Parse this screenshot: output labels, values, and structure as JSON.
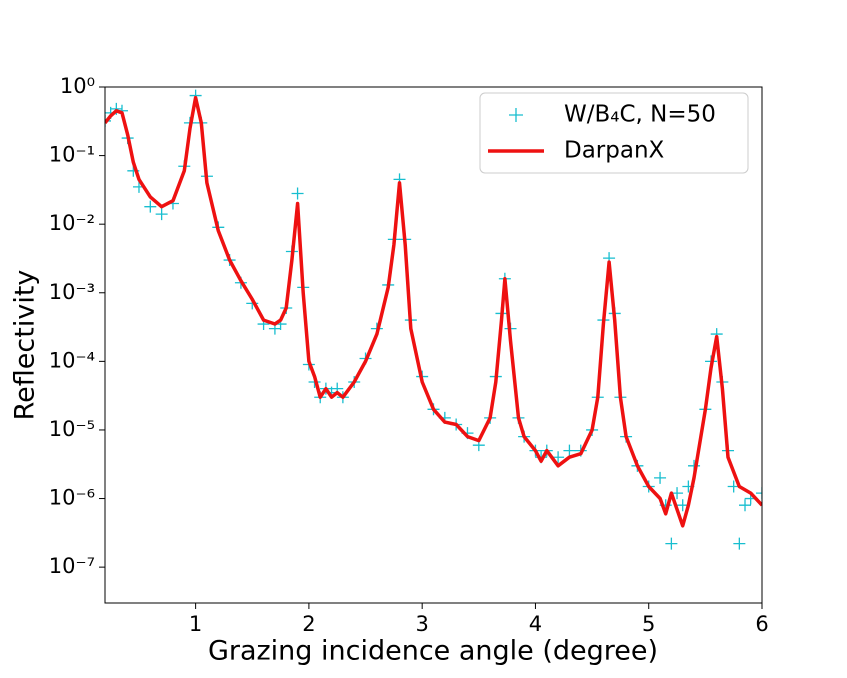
{
  "chart_data": {
    "type": "line",
    "xlabel": "Grazing incidence angle (degree)",
    "ylabel": "Reflectivity",
    "ylog": true,
    "xlim": [
      0.2,
      6
    ],
    "ylim": [
      3e-08,
      1
    ],
    "xticks": [
      1,
      2,
      3,
      4,
      5,
      6
    ],
    "yticks": [
      {
        "value": 1,
        "label": "10⁰"
      },
      {
        "value": 0.1,
        "label": "10⁻¹"
      },
      {
        "value": 0.01,
        "label": "10⁻²"
      },
      {
        "value": 0.001,
        "label": "10⁻³"
      },
      {
        "value": 0.0001,
        "label": "10⁻⁴"
      },
      {
        "value": 1e-05,
        "label": "10⁻⁵"
      },
      {
        "value": 1e-06,
        "label": "10⁻⁶"
      },
      {
        "value": 1e-07,
        "label": "10⁻⁷"
      }
    ],
    "legend": "upper right",
    "series": [
      {
        "name": "W/B₄C, N=50",
        "color": "#17becf",
        "style": "scatter",
        "x": [
          0.2,
          0.25,
          0.3,
          0.35,
          0.4,
          0.45,
          0.5,
          0.6,
          0.7,
          0.8,
          0.9,
          0.95,
          1.0,
          1.05,
          1.1,
          1.2,
          1.3,
          1.4,
          1.5,
          1.6,
          1.7,
          1.75,
          1.8,
          1.85,
          1.9,
          1.95,
          2.0,
          2.05,
          2.1,
          2.15,
          2.2,
          2.25,
          2.3,
          2.4,
          2.5,
          2.6,
          2.7,
          2.75,
          2.8,
          2.85,
          2.9,
          3.0,
          3.1,
          3.2,
          3.3,
          3.4,
          3.5,
          3.6,
          3.65,
          3.7,
          3.73,
          3.78,
          3.85,
          3.9,
          4.0,
          4.05,
          4.1,
          4.2,
          4.3,
          4.4,
          4.5,
          4.55,
          4.6,
          4.65,
          4.7,
          4.75,
          4.8,
          4.9,
          5.0,
          5.1,
          5.15,
          5.2,
          5.25,
          5.3,
          5.35,
          5.4,
          5.5,
          5.55,
          5.6,
          5.65,
          5.7,
          5.75,
          5.8,
          5.85,
          5.9,
          6.0
        ],
        "values": [
          0.32,
          0.42,
          0.48,
          0.45,
          0.18,
          0.06,
          0.035,
          0.018,
          0.014,
          0.02,
          0.07,
          0.3,
          0.75,
          0.3,
          0.05,
          0.009,
          0.003,
          0.0014,
          0.0007,
          0.00035,
          0.0003,
          0.00035,
          0.0006,
          0.004,
          0.028,
          0.0012,
          9e-05,
          5e-05,
          3e-05,
          4e-05,
          3.5e-05,
          4e-05,
          3e-05,
          5e-05,
          0.00011,
          0.0003,
          0.0013,
          0.006,
          0.045,
          0.006,
          0.0004,
          6e-05,
          2e-05,
          1.5e-05,
          1.2e-05,
          9e-06,
          6e-06,
          1.5e-05,
          6e-05,
          0.0005,
          0.0016,
          0.0003,
          1.5e-05,
          8e-06,
          5e-06,
          4e-06,
          5e-06,
          4e-06,
          5e-06,
          5e-06,
          1e-05,
          3e-05,
          0.0004,
          0.0032,
          0.0005,
          3e-05,
          8e-06,
          3e-06,
          1.5e-06,
          2e-06,
          8e-07,
          2.2e-07,
          1.2e-06,
          8e-07,
          1.5e-06,
          3e-06,
          2e-05,
          0.0001,
          0.00025,
          5e-05,
          5e-06,
          1.5e-06,
          2.2e-07,
          8e-07,
          1e-06,
          1.2e-06
        ]
      },
      {
        "name": "DarpanX",
        "color": "#ee1111",
        "style": "line",
        "x": [
          0.2,
          0.25,
          0.3,
          0.35,
          0.4,
          0.45,
          0.5,
          0.6,
          0.7,
          0.8,
          0.9,
          0.95,
          1.0,
          1.05,
          1.1,
          1.2,
          1.3,
          1.4,
          1.5,
          1.6,
          1.7,
          1.75,
          1.8,
          1.85,
          1.9,
          1.95,
          2.0,
          2.05,
          2.1,
          2.15,
          2.2,
          2.25,
          2.3,
          2.4,
          2.5,
          2.6,
          2.7,
          2.75,
          2.8,
          2.85,
          2.9,
          3.0,
          3.1,
          3.2,
          3.3,
          3.4,
          3.5,
          3.6,
          3.65,
          3.7,
          3.73,
          3.78,
          3.85,
          3.9,
          4.0,
          4.05,
          4.1,
          4.2,
          4.3,
          4.4,
          4.5,
          4.55,
          4.6,
          4.65,
          4.7,
          4.75,
          4.8,
          4.9,
          5.0,
          5.1,
          5.15,
          5.2,
          5.3,
          5.35,
          5.4,
          5.5,
          5.55,
          5.6,
          5.65,
          5.7,
          5.8,
          5.9,
          6.0
        ],
        "values": [
          0.3,
          0.38,
          0.45,
          0.42,
          0.2,
          0.08,
          0.045,
          0.025,
          0.018,
          0.022,
          0.06,
          0.25,
          0.7,
          0.3,
          0.04,
          0.008,
          0.003,
          0.0015,
          0.0008,
          0.0004,
          0.00035,
          0.0004,
          0.0006,
          0.003,
          0.02,
          0.001,
          0.0001,
          6e-05,
          3e-05,
          4e-05,
          3e-05,
          3.5e-05,
          3e-05,
          5e-05,
          0.0001,
          0.00025,
          0.0012,
          0.005,
          0.04,
          0.005,
          0.0003,
          5e-05,
          2e-05,
          1.3e-05,
          1.2e-05,
          8e-06,
          7e-06,
          1.5e-05,
          5e-05,
          0.0004,
          0.0016,
          0.0002,
          1.5e-05,
          8e-06,
          5e-06,
          3.5e-06,
          5e-06,
          3e-06,
          4e-06,
          4.5e-06,
          1e-05,
          3e-05,
          0.00035,
          0.0028,
          0.0004,
          3e-05,
          8e-06,
          3e-06,
          1.5e-06,
          1e-06,
          6e-07,
          1.2e-06,
          4e-07,
          8e-07,
          2e-06,
          2e-05,
          8e-05,
          0.00023,
          4e-05,
          4e-06,
          1.5e-06,
          1.2e-06,
          8e-07
        ]
      }
    ]
  }
}
